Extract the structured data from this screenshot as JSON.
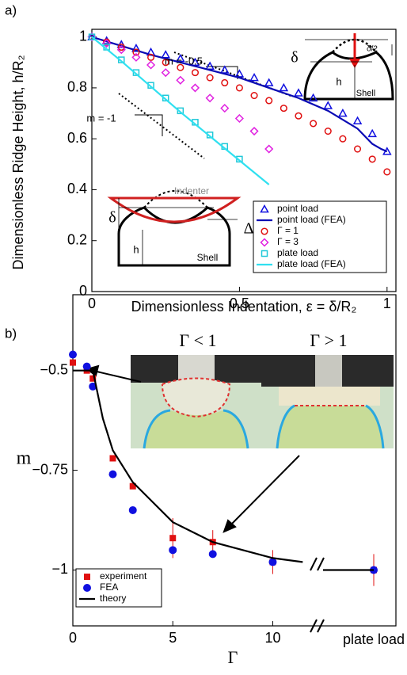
{
  "chart_data": [
    {
      "type": "scatter",
      "panel_label": "a)",
      "x_label": "Dimensionless Indentation, ε = δ/R₂",
      "y_label": "Dimensionless Ridge Height, h/R₂",
      "xlim": [
        0,
        1.03
      ],
      "ylim": [
        0,
        1.03
      ],
      "xticks": [
        0,
        0.5,
        1
      ],
      "yticks": [
        0,
        0.2,
        0.4,
        0.6,
        0.8,
        1
      ],
      "legend": "lower right",
      "annotations": [
        "m = -0.5",
        "m = -1",
        "δ",
        "δ/2",
        "h",
        "Shell",
        "Indenter",
        "δ",
        "Δ",
        "h",
        "Shell"
      ],
      "series": [
        {
          "name": "point load",
          "color": "#1010e0",
          "marker": "triangle",
          "x": [
            0,
            0.05,
            0.1,
            0.15,
            0.2,
            0.25,
            0.3,
            0.35,
            0.4,
            0.45,
            0.5,
            0.55,
            0.6,
            0.65,
            0.7,
            0.75,
            0.8,
            0.85,
            0.9,
            0.95,
            1
          ],
          "values": [
            1,
            0.985,
            0.97,
            0.955,
            0.94,
            0.93,
            0.915,
            0.9,
            0.885,
            0.87,
            0.855,
            0.84,
            0.82,
            0.8,
            0.78,
            0.76,
            0.73,
            0.7,
            0.67,
            0.62,
            0.55
          ]
        },
        {
          "name": "point load (FEA)",
          "color": "#0a0ab4",
          "marker": "line",
          "x": [
            0,
            0.1,
            0.2,
            0.3,
            0.4,
            0.5,
            0.6,
            0.7,
            0.8,
            0.9,
            0.95,
            0.98,
            1
          ],
          "values": [
            1,
            0.965,
            0.93,
            0.9,
            0.87,
            0.84,
            0.8,
            0.76,
            0.71,
            0.64,
            0.58,
            0.56,
            0.55
          ]
        },
        {
          "name": "Γ = 1",
          "color": "#e01010",
          "marker": "circle",
          "x": [
            0,
            0.05,
            0.1,
            0.15,
            0.2,
            0.25,
            0.3,
            0.35,
            0.4,
            0.45,
            0.5,
            0.55,
            0.6,
            0.65,
            0.7,
            0.75,
            0.8,
            0.85,
            0.9,
            0.95,
            1
          ],
          "values": [
            1,
            0.98,
            0.96,
            0.94,
            0.92,
            0.9,
            0.88,
            0.86,
            0.84,
            0.82,
            0.8,
            0.77,
            0.75,
            0.72,
            0.69,
            0.66,
            0.63,
            0.6,
            0.56,
            0.52,
            0.47
          ]
        },
        {
          "name": "Γ = 3",
          "color": "#e020e0",
          "marker": "diamond",
          "x": [
            0,
            0.05,
            0.1,
            0.15,
            0.2,
            0.25,
            0.3,
            0.35,
            0.4,
            0.45,
            0.5,
            0.55,
            0.6
          ],
          "values": [
            1,
            0.975,
            0.95,
            0.92,
            0.89,
            0.86,
            0.83,
            0.8,
            0.76,
            0.72,
            0.68,
            0.63,
            0.56
          ]
        },
        {
          "name": "plate load",
          "color": "#20c8d8",
          "marker": "square",
          "x": [
            0,
            0.05,
            0.1,
            0.15,
            0.2,
            0.25,
            0.3,
            0.35,
            0.4,
            0.45,
            0.5
          ],
          "values": [
            1,
            0.96,
            0.91,
            0.86,
            0.81,
            0.76,
            0.71,
            0.665,
            0.615,
            0.57,
            0.52
          ]
        },
        {
          "name": "plate load (FEA)",
          "color": "#30e0f0",
          "marker": "line",
          "x": [
            0,
            0.1,
            0.2,
            0.3,
            0.4,
            0.5,
            0.6
          ],
          "values": [
            1,
            0.905,
            0.805,
            0.705,
            0.61,
            0.515,
            0.42
          ]
        }
      ]
    },
    {
      "type": "scatter",
      "panel_label": "b)",
      "x_label": "Γ",
      "y_label": "m",
      "xlim": [
        0,
        12.2
      ],
      "ylim": [
        -1.14,
        -0.31
      ],
      "xticks": [
        0,
        5,
        10
      ],
      "yticks": [
        {
          "value": -0.5,
          "label": "−0.5"
        },
        {
          "value": -0.75,
          "label": "−0.75"
        },
        {
          "value": -1,
          "label": "−1"
        }
      ],
      "plate_label": "plate load",
      "legend": "lower left",
      "photo_labels": [
        "Γ < 1",
        "Γ > 1"
      ],
      "series": [
        {
          "name": "experiment",
          "color": "#e01010",
          "marker": "filled-square",
          "x": [
            0,
            0.7,
            1,
            2,
            3,
            5,
            7,
            10
          ],
          "values": [
            -0.48,
            -0.5,
            -0.52,
            -0.72,
            -0.79,
            -0.92,
            -0.93,
            -0.98
          ],
          "errors": [
            null,
            null,
            null,
            null,
            null,
            0.05,
            0.03,
            0.03
          ],
          "plate_value": -1,
          "plate_error": 0.04
        },
        {
          "name": "FEA",
          "color": "#1010e0",
          "marker": "dot",
          "x": [
            0,
            0.7,
            1,
            2,
            3,
            5,
            7,
            10
          ],
          "values": [
            -0.46,
            -0.49,
            -0.54,
            -0.76,
            -0.85,
            -0.95,
            -0.96,
            -0.98
          ],
          "plate_value": -1
        },
        {
          "name": "theory",
          "color": "#000000",
          "marker": "line",
          "x": [
            0,
            1,
            1.5,
            2,
            3,
            4,
            5,
            7,
            10,
            11.5
          ],
          "values": [
            -0.5,
            -0.5,
            -0.62,
            -0.7,
            -0.78,
            -0.83,
            -0.88,
            -0.93,
            -0.97,
            -0.98
          ],
          "plate_value": -1
        }
      ]
    }
  ]
}
